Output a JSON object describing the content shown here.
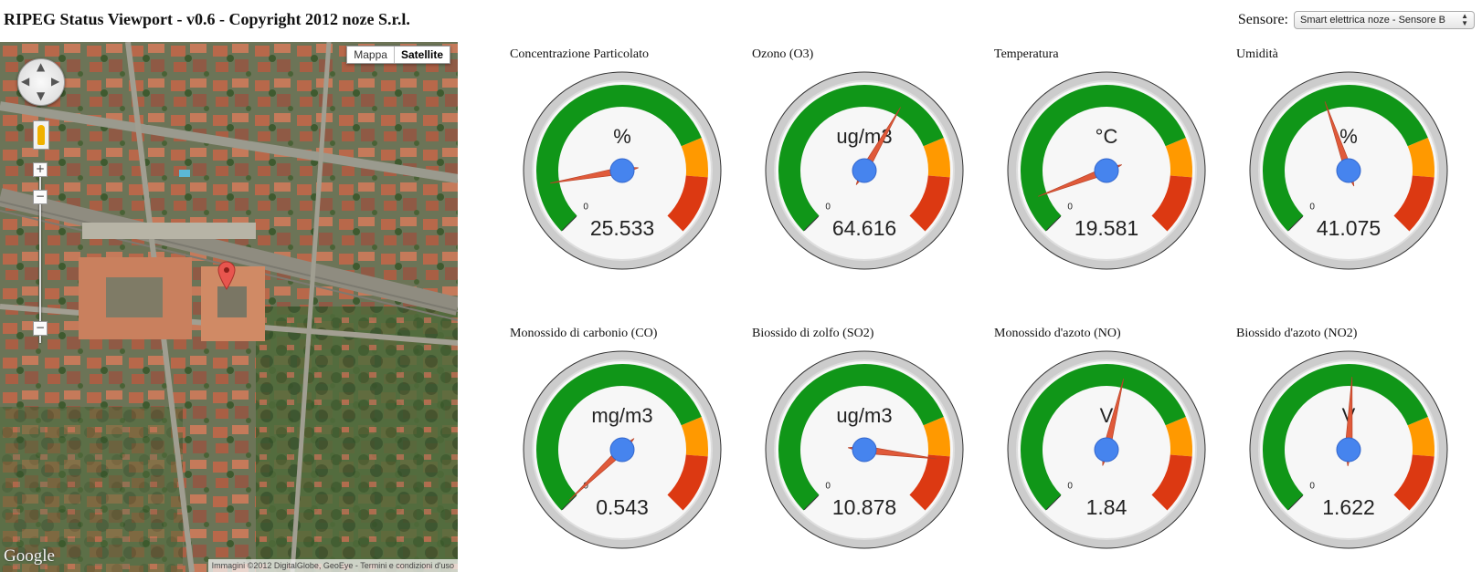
{
  "header": {
    "title": "RIPEG Status Viewport - v0.6 - Copyright 2012 noze S.r.l."
  },
  "sensor": {
    "label": "Sensore:",
    "selected": "Smart elettrica noze - Sensore B"
  },
  "map": {
    "type_buttons": [
      "Mappa",
      "Satellite"
    ],
    "active_type": "Satellite",
    "logo": "Google",
    "attribution": "Immagini ©2012 DigitalGlobe, GeoEye - Termini e condizioni d'uso",
    "zoom_in": "+",
    "zoom_out": "−"
  },
  "gauges": [
    {
      "label": "Concentrazione Particolato",
      "unit": "%",
      "value": "25.533",
      "needle_fraction": 0.13,
      "min_label": "0"
    },
    {
      "label": "Ozono (O3)",
      "unit": "ug/m3",
      "value": "64.616",
      "needle_fraction": 0.61,
      "min_label": "0"
    },
    {
      "label": "Temperatura",
      "unit": "°C",
      "value": "19.581",
      "needle_fraction": 0.09,
      "min_label": "0"
    },
    {
      "label": "Umidità",
      "unit": "%",
      "value": "41.075",
      "needle_fraction": 0.43,
      "min_label": "0"
    },
    {
      "label": "Monossido di carbonio (CO)",
      "unit": "mg/m3",
      "value": "0.543",
      "needle_fraction": 0.005,
      "min_label": "0"
    },
    {
      "label": "Biossido di zolfo (SO2)",
      "unit": "ug/m3",
      "value": "10.878",
      "needle_fraction": 0.86,
      "min_label": "0"
    },
    {
      "label": "Monossido d'azoto (NO)",
      "unit": "V",
      "value": "1.84",
      "needle_fraction": 0.55,
      "min_label": "0"
    },
    {
      "label": "Biossido d'azoto (NO2)",
      "unit": "V",
      "value": "1.622",
      "needle_fraction": 0.51,
      "min_label": "0"
    }
  ],
  "colors": {
    "green": "#109618",
    "orange": "#ff9900",
    "red": "#dc3912",
    "needle": "#e05a3a",
    "hub": "#4684ee"
  }
}
